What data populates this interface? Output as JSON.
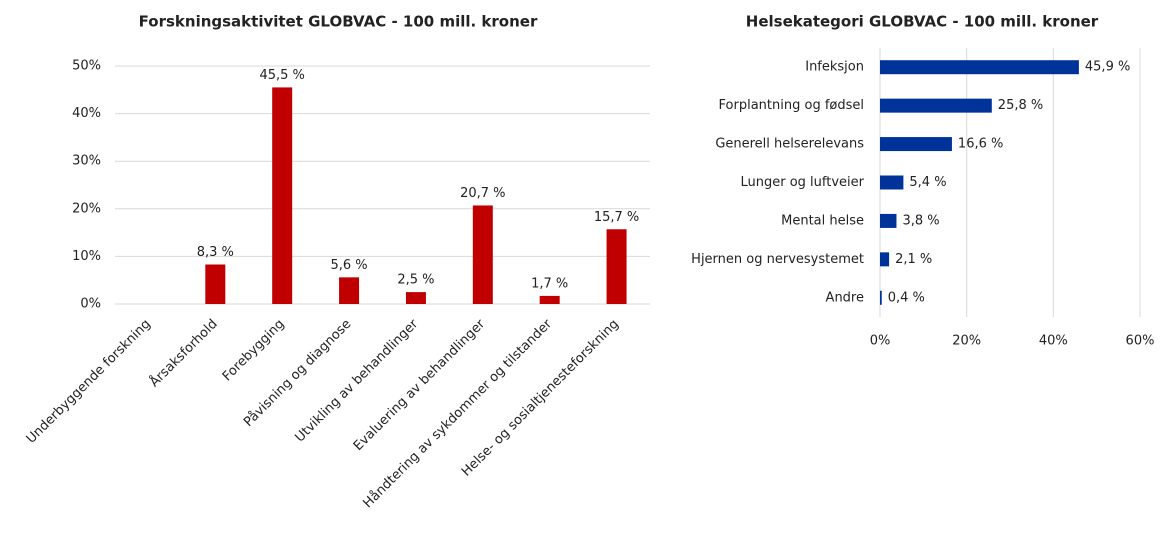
{
  "chart_data": [
    {
      "type": "bar",
      "title": "Forskningsaktivitet GLOBVAC - 100 mill. kroner",
      "categories": [
        "Underbyggende forskning",
        "Årsaksforhold",
        "Forebygging",
        "Påvisning og diagnose",
        "Utvikling av behandlinger",
        "Evaluering av behandlinger",
        "Håndtering av sykdommer og tilstander",
        "Helse- og sosialtjenesteforskning"
      ],
      "values": [
        0,
        8.3,
        45.5,
        5.6,
        2.5,
        20.7,
        1.7,
        15.7
      ],
      "value_labels": [
        null,
        "8,3 %",
        "45,5 %",
        "5,6 %",
        "2,5 %",
        "20,7 %",
        "1,7 %",
        "15,7 %"
      ],
      "color": "#c00000",
      "ylim": [
        0,
        50
      ],
      "yticks": [
        {
          "value": 0,
          "label": "0%"
        },
        {
          "value": 10,
          "label": "10%"
        },
        {
          "value": 20,
          "label": "20%"
        },
        {
          "value": 30,
          "label": "30%"
        },
        {
          "value": 40,
          "label": "40%"
        },
        {
          "value": 50,
          "label": "50%"
        }
      ],
      "grid": true
    },
    {
      "type": "hbar",
      "title": "Helsekategori GLOBVAC - 100 mill. kroner",
      "categories": [
        "Infeksjon",
        "Forplantning og fødsel",
        "Generell helserelevans",
        "Lunger og luftveier",
        "Mental helse",
        "Hjernen og nervesystemet",
        "Andre"
      ],
      "values": [
        45.9,
        25.8,
        16.6,
        5.4,
        3.8,
        2.1,
        0.4
      ],
      "value_labels": [
        "45,9 %",
        "25,8 %",
        "16,6 %",
        "5,4 %",
        "3,8 %",
        "2,1 %",
        "0,4 %"
      ],
      "color": "#003399",
      "xlim": [
        0,
        60
      ],
      "xticks": [
        {
          "value": 0,
          "label": "0%"
        },
        {
          "value": 20,
          "label": "20%"
        },
        {
          "value": 40,
          "label": "40%"
        },
        {
          "value": 60,
          "label": "60%"
        }
      ],
      "grid": true
    }
  ]
}
